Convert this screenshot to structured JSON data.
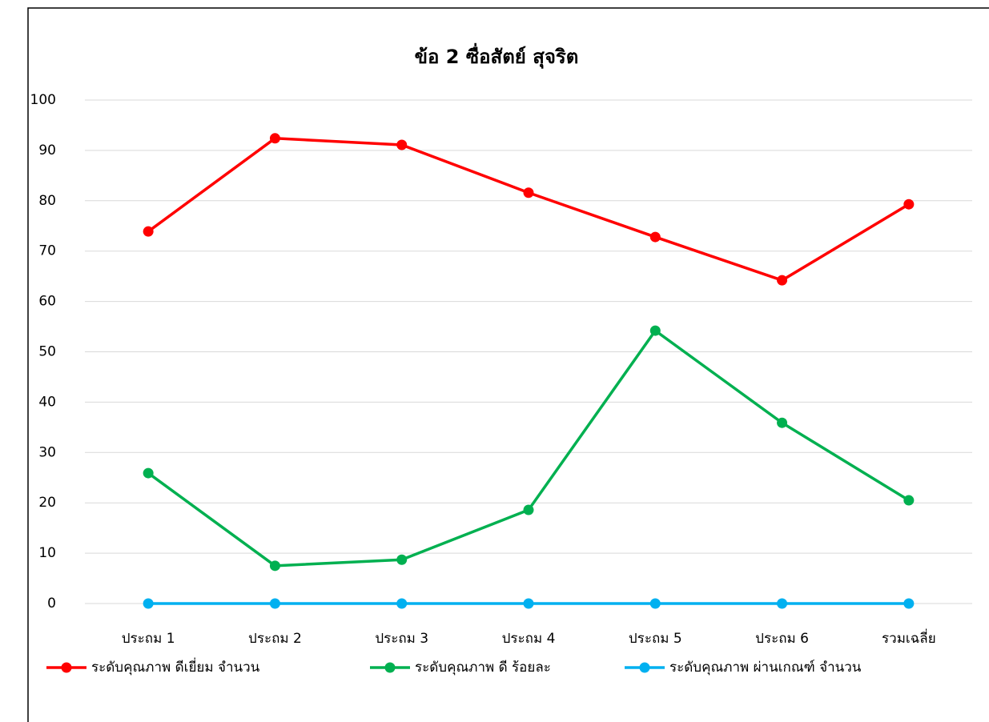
{
  "chart_data": {
    "type": "line",
    "title": "ข้อ 2 ซื่อสัตย์  สุจริต",
    "categories": [
      "ประถม 1",
      "ประถม 2",
      "ประถม 3",
      "ประถม 4",
      "ประถม 5",
      "ประถม 6",
      "รวมเฉลี่ย"
    ],
    "series": [
      {
        "name": "ระดับคุณภาพ ดีเยี่ยม จำนวน",
        "color": "#ff0000",
        "values": [
          73.9,
          92.4,
          91.1,
          81.6,
          72.8,
          64.2,
          79.3
        ]
      },
      {
        "name": "ระดับคุณภาพ ดี ร้อยละ",
        "color": "#00b050",
        "values": [
          25.9,
          7.5,
          8.7,
          18.6,
          54.2,
          35.9,
          20.5
        ]
      },
      {
        "name": "ระดับคุณภาพ ผ่านเกณฑ์ จำนวน",
        "color": "#00b0f0",
        "values": [
          0,
          0,
          0,
          0,
          0,
          0,
          0
        ]
      }
    ],
    "ylim": [
      0,
      100
    ],
    "yticks": [
      0,
      10,
      20,
      30,
      40,
      50,
      60,
      70,
      80,
      90,
      100
    ],
    "grid": true,
    "legend": "bottom"
  }
}
